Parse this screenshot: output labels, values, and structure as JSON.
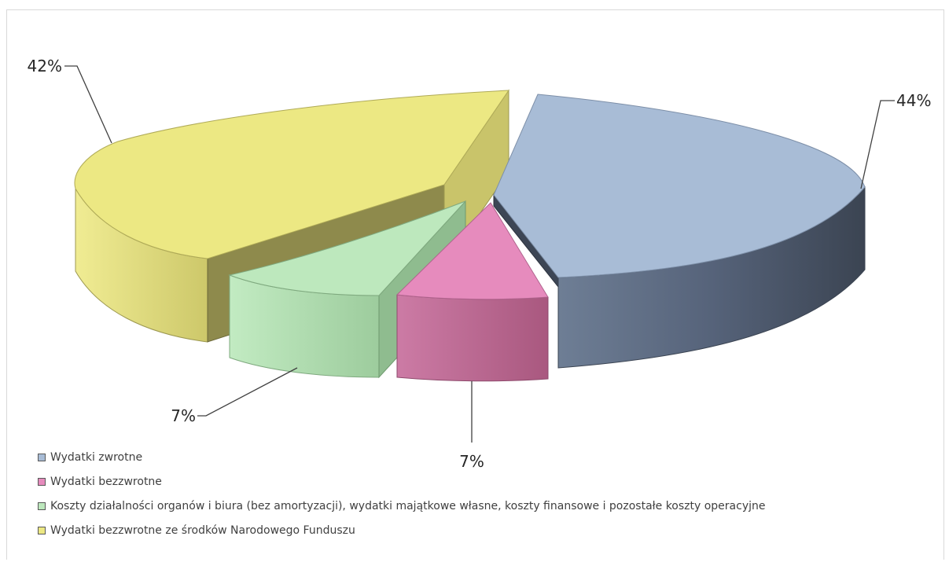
{
  "chart_data": {
    "type": "pie",
    "series": [
      {
        "categories": [
          "Wydatki zwrotne",
          "Wydatki bezzwrotne",
          "Koszty działalności organów i biura (bez amortyzacji), wydatki majątkowe własne, koszty finansowe i pozostałe koszty operacyjne",
          "Wydatki bezzwrotne ze środków Narodowego Funduszu"
        ],
        "values": [
          44,
          7,
          7,
          42
        ],
        "labels": [
          "44%",
          "7%",
          "7%",
          "42%"
        ],
        "colors": [
          "#a8bcd6",
          "#e68bbd",
          "#bde8bd",
          "#ece883"
        ]
      }
    ],
    "legend_position": "bottom-left",
    "style": "3d-exploded"
  }
}
